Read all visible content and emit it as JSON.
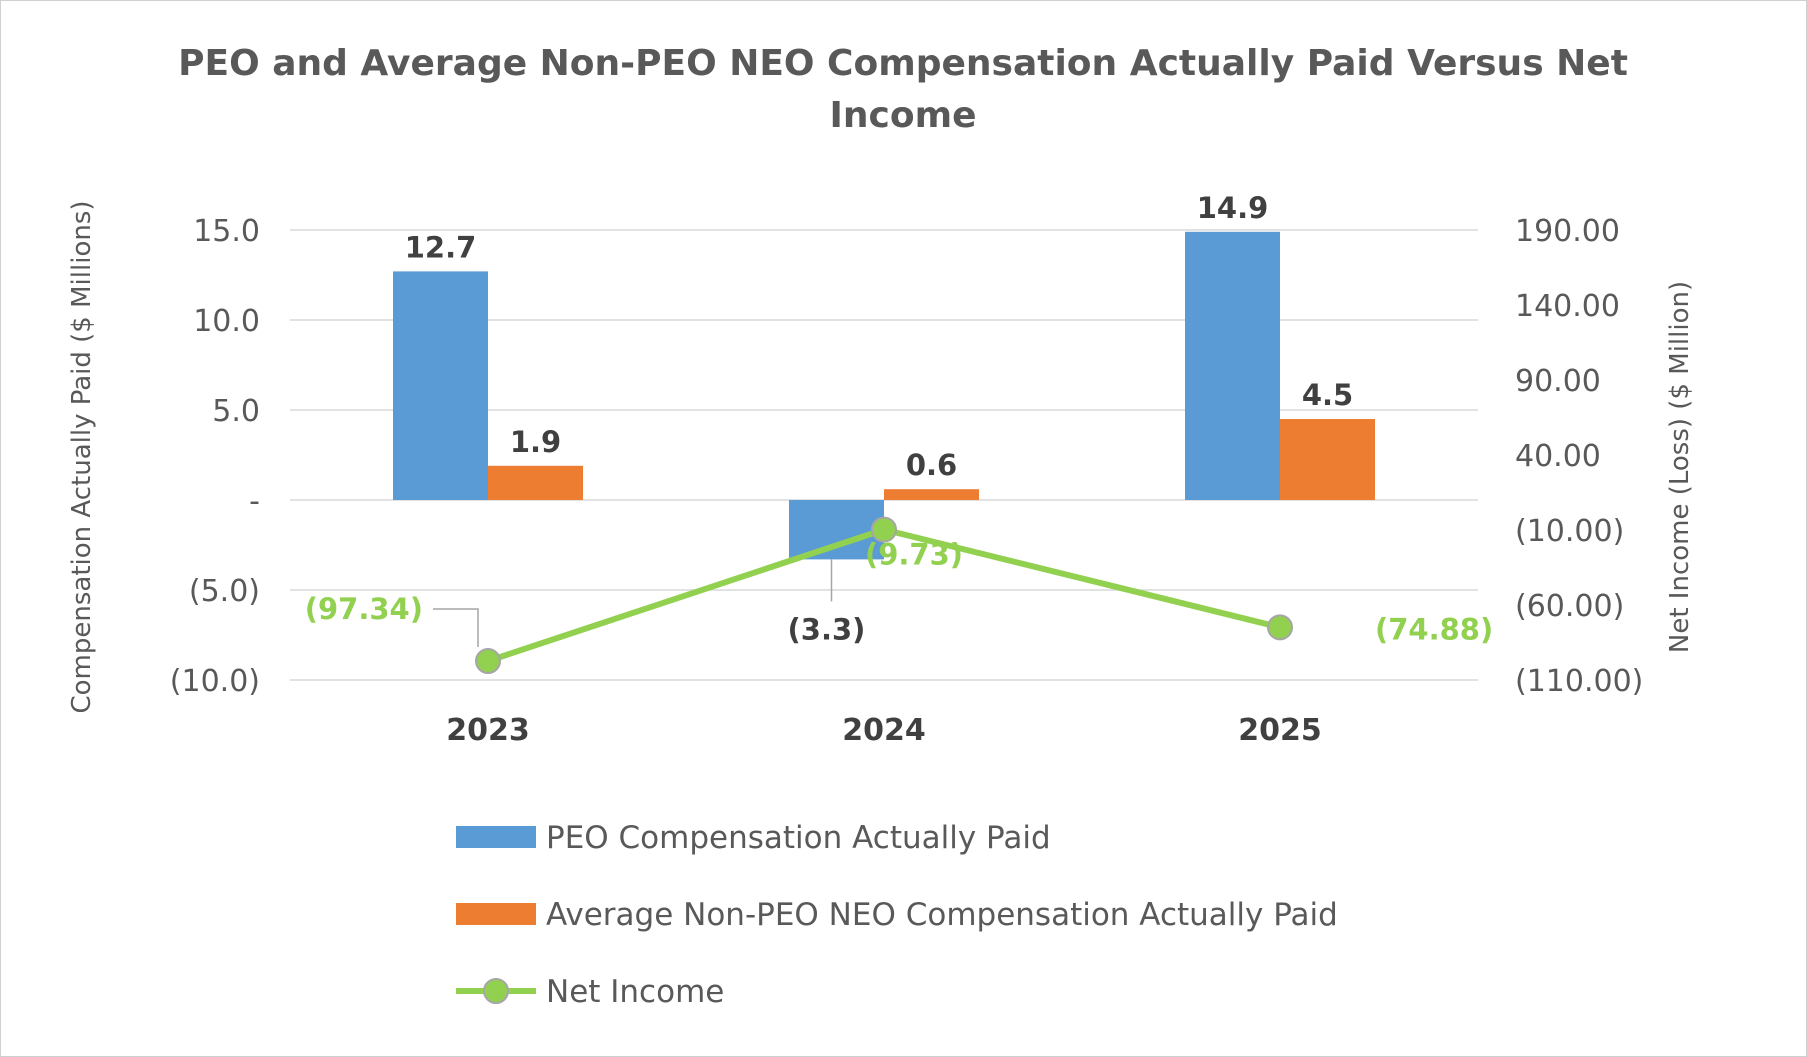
{
  "chart_data": {
    "type": "bar",
    "title": "PEO and Average Non-PEO NEO Compensation Actually Paid Versus Net Income",
    "title_lines": [
      "PEO and Average Non-PEO NEO Compensation Actually Paid Versus Net",
      "Income"
    ],
    "categories": [
      "2023",
      "2024",
      "2025"
    ],
    "series": [
      {
        "name": "PEO Compensation Actually Paid",
        "type": "bar",
        "axis": "left",
        "color": "#5b9bd5",
        "values": [
          12.7,
          -3.3,
          14.9
        ],
        "labels": [
          "12.7",
          "(3.3)",
          "14.9"
        ]
      },
      {
        "name": "Average Non-PEO NEO Compensation Actually Paid",
        "type": "bar",
        "axis": "left",
        "color": "#ed7d31",
        "values": [
          1.9,
          0.6,
          4.5
        ],
        "labels": [
          "1.9",
          "0.6",
          "4.5"
        ]
      },
      {
        "name": "Net Income",
        "type": "line",
        "axis": "right",
        "color": "#92d050",
        "values": [
          -97.34,
          -9.73,
          -74.88
        ],
        "labels": [
          "(97.34)",
          "(9.73)",
          "(74.88)"
        ]
      }
    ],
    "y_left": {
      "label": "Compensation Actually Paid ($ Millions)",
      "ylim": [
        -10,
        15
      ],
      "ticks": [
        15,
        10,
        5,
        0,
        -5,
        -10
      ],
      "tick_labels": [
        "15.0",
        "10.0",
        "5.0",
        "-",
        "(5.0)",
        "(10.0)"
      ]
    },
    "y_right": {
      "label": "Net Income (Loss) ($ Million)",
      "ylim": [
        -110,
        190
      ],
      "ticks": [
        190,
        140,
        90,
        40,
        -10,
        -60,
        -110
      ],
      "tick_labels": [
        "190.00",
        "140.00",
        "90.00",
        "40.00",
        "(10.00)",
        "(60.00)",
        "(110.00)"
      ]
    },
    "grid": true,
    "legend_position": "bottom"
  }
}
